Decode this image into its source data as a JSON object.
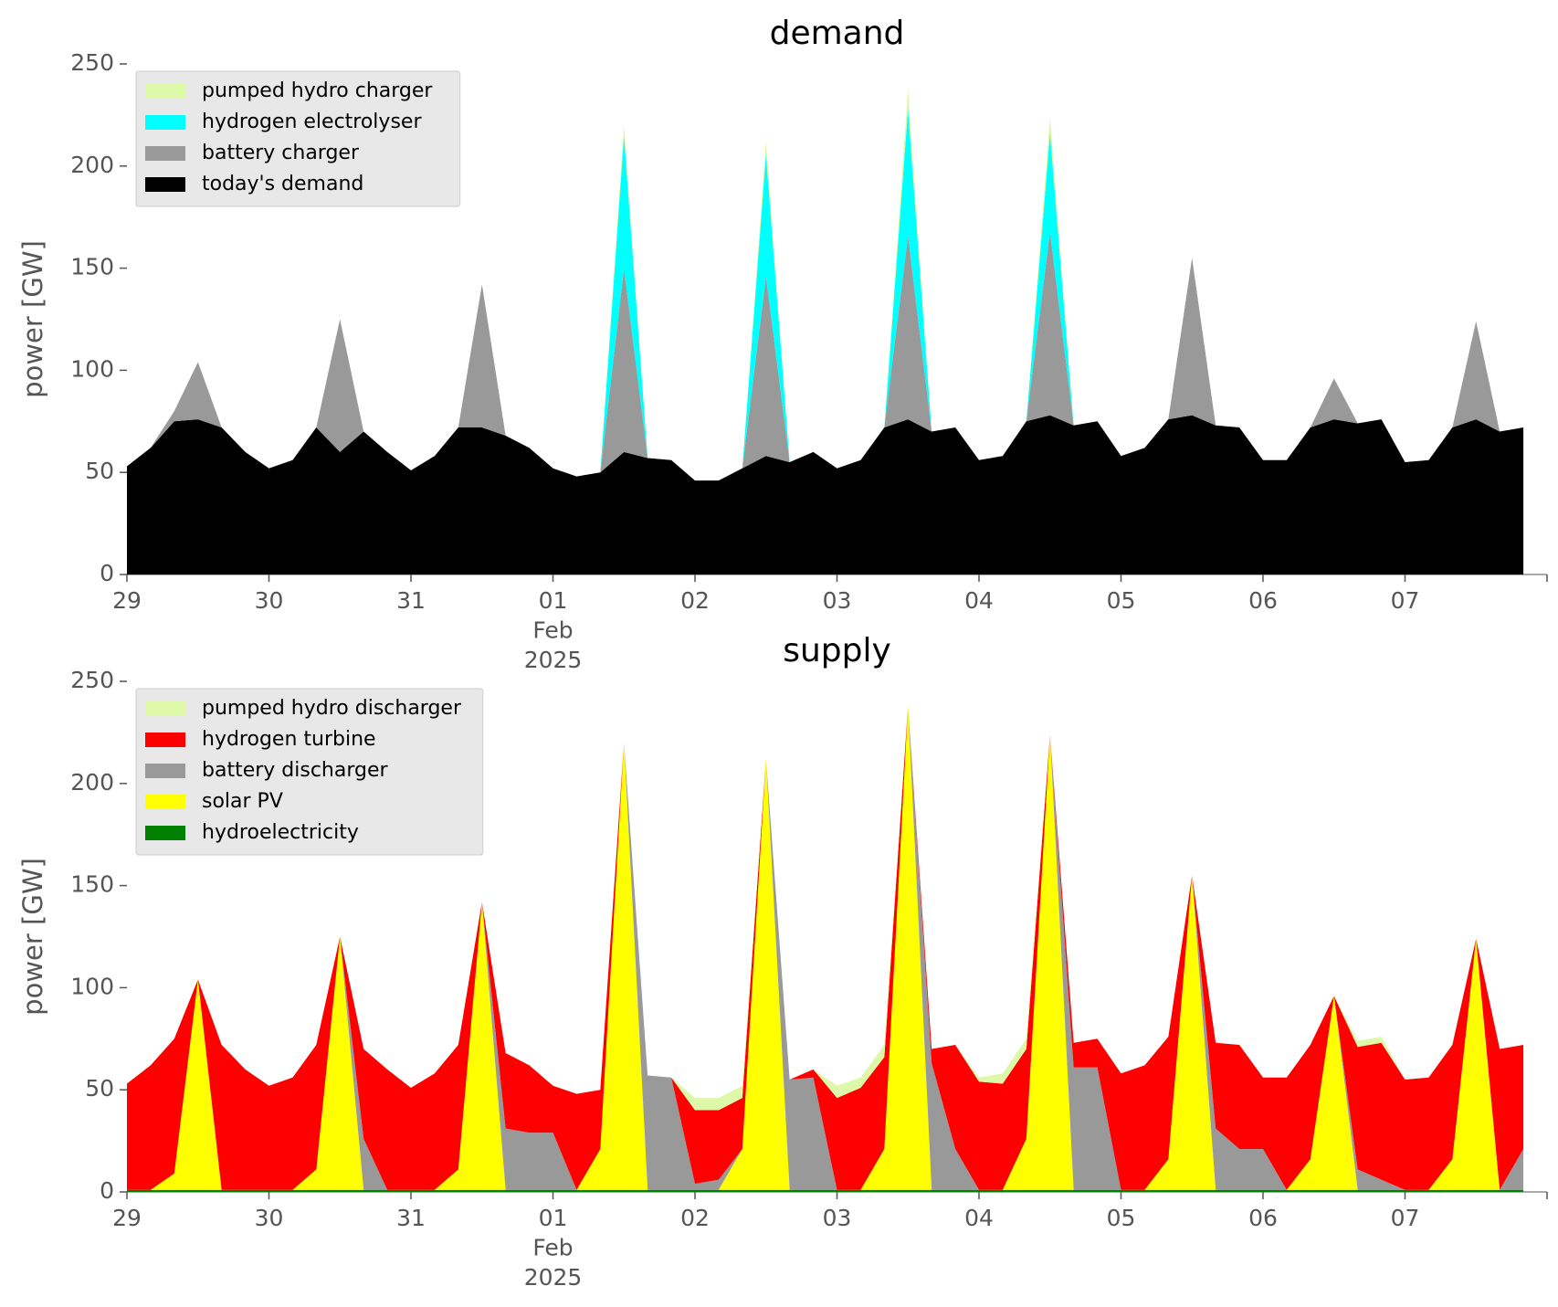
{
  "chart_data": [
    {
      "type": "area",
      "title": "demand",
      "y_label": "power [GW]",
      "legend": "upper left",
      "xlim": [
        "2025-01-29T00:00",
        "2025-02-08T00:00"
      ],
      "ylim": [
        0,
        250
      ],
      "yticks": [
        0,
        50,
        100,
        150,
        200,
        250
      ],
      "xticks": [
        {
          "value": "2025-01-29T00:00",
          "label": "29"
        },
        {
          "value": "2025-01-30T00:00",
          "label": "30"
        },
        {
          "value": "2025-01-31T00:00",
          "label": "31"
        },
        {
          "value": "2025-02-01T00:00",
          "label": "01\nFeb\n2025"
        },
        {
          "value": "2025-02-02T00:00",
          "label": "02"
        },
        {
          "value": "2025-02-03T00:00",
          "label": "03"
        },
        {
          "value": "2025-02-04T00:00",
          "label": "04"
        },
        {
          "value": "2025-02-05T00:00",
          "label": "05"
        },
        {
          "value": "2025-02-06T00:00",
          "label": "06"
        },
        {
          "value": "2025-02-07T00:00",
          "label": "07"
        },
        {
          "value": "2025-02-08T00:00",
          "label": ""
        }
      ],
      "x": [
        "2025-01-29T00:00",
        "2025-01-29T04:00",
        "2025-01-29T08:00",
        "2025-01-29T12:00",
        "2025-01-29T16:00",
        "2025-01-29T20:00",
        "2025-01-30T00:00",
        "2025-01-30T04:00",
        "2025-01-30T08:00",
        "2025-01-30T12:00",
        "2025-01-30T16:00",
        "2025-01-30T20:00",
        "2025-01-31T00:00",
        "2025-01-31T04:00",
        "2025-01-31T08:00",
        "2025-01-31T12:00",
        "2025-01-31T16:00",
        "2025-01-31T20:00",
        "2025-02-01T00:00",
        "2025-02-01T04:00",
        "2025-02-01T08:00",
        "2025-02-01T12:00",
        "2025-02-01T16:00",
        "2025-02-01T20:00",
        "2025-02-02T00:00",
        "2025-02-02T04:00",
        "2025-02-02T08:00",
        "2025-02-02T12:00",
        "2025-02-02T16:00",
        "2025-02-02T20:00",
        "2025-02-03T00:00",
        "2025-02-03T04:00",
        "2025-02-03T08:00",
        "2025-02-03T12:00",
        "2025-02-03T16:00",
        "2025-02-03T20:00",
        "2025-02-04T00:00",
        "2025-02-04T04:00",
        "2025-02-04T08:00",
        "2025-02-04T12:00",
        "2025-02-04T16:00",
        "2025-02-04T20:00",
        "2025-02-05T00:00",
        "2025-02-05T04:00",
        "2025-02-05T08:00",
        "2025-02-05T12:00",
        "2025-02-05T16:00",
        "2025-02-05T20:00",
        "2025-02-06T00:00",
        "2025-02-06T04:00",
        "2025-02-06T08:00",
        "2025-02-06T12:00",
        "2025-02-06T16:00",
        "2025-02-06T20:00",
        "2025-02-07T00:00",
        "2025-02-07T04:00",
        "2025-02-07T08:00",
        "2025-02-07T12:00",
        "2025-02-07T16:00",
        "2025-02-07T20:00"
      ],
      "series": [
        {
          "name": "pumped hydro charger",
          "color": "#dcf8a8",
          "values": [
            0,
            0,
            0,
            0,
            0,
            0,
            0,
            0,
            0,
            0,
            0,
            0,
            0,
            0,
            0,
            0,
            0,
            0,
            0,
            0,
            0,
            5,
            0,
            0,
            0,
            0,
            0,
            6,
            0,
            0,
            0,
            0,
            0,
            10,
            0,
            0,
            0,
            0,
            0,
            8,
            0,
            0,
            0,
            0,
            0,
            0,
            0,
            0,
            0,
            0,
            0,
            0,
            0,
            0,
            0,
            0,
            0,
            0,
            0,
            0
          ]
        },
        {
          "name": "hydrogen electrolyser",
          "color": "#00ffff",
          "values": [
            0,
            0,
            0,
            0,
            0,
            0,
            0,
            0,
            0,
            0,
            0,
            0,
            0,
            0,
            0,
            0,
            0,
            0,
            0,
            0,
            0,
            65,
            0,
            0,
            0,
            0,
            0,
            60,
            0,
            0,
            0,
            0,
            0,
            62,
            0,
            0,
            0,
            0,
            0,
            48,
            0,
            0,
            0,
            0,
            0,
            0,
            0,
            0,
            0,
            0,
            0,
            0,
            0,
            0,
            0,
            0,
            0,
            0,
            0,
            0
          ]
        },
        {
          "name": "battery charger",
          "color": "#999999",
          "values": [
            0,
            0,
            5,
            28,
            0,
            0,
            0,
            0,
            0,
            65,
            0,
            0,
            0,
            0,
            0,
            70,
            0,
            0,
            0,
            0,
            0,
            90,
            0,
            0,
            0,
            0,
            0,
            88,
            0,
            0,
            0,
            0,
            0,
            90,
            0,
            0,
            0,
            0,
            0,
            90,
            0,
            0,
            0,
            0,
            0,
            77,
            0,
            0,
            0,
            0,
            0,
            20,
            0,
            0,
            0,
            0,
            0,
            48,
            0,
            0
          ]
        },
        {
          "name": "today's demand",
          "color": "#000000",
          "values": [
            53,
            62,
            75,
            76,
            72,
            60,
            52,
            56,
            72,
            60,
            70,
            60,
            51,
            58,
            72,
            72,
            68,
            62,
            52,
            48,
            50,
            60,
            57,
            56,
            46,
            46,
            52,
            58,
            55,
            60,
            52,
            56,
            72,
            76,
            70,
            72,
            56,
            58,
            75,
            78,
            73,
            75,
            58,
            62,
            76,
            78,
            73,
            72,
            56,
            56,
            72,
            76,
            74,
            76,
            55,
            56,
            72,
            76,
            70,
            72
          ]
        }
      ]
    },
    {
      "type": "area",
      "title": "supply",
      "y_label": "power [GW]",
      "legend": "upper left",
      "xlim": [
        "2025-01-29T00:00",
        "2025-02-08T00:00"
      ],
      "ylim": [
        0,
        250
      ],
      "yticks": [
        0,
        50,
        100,
        150,
        200,
        250
      ],
      "xticks": [
        {
          "value": "2025-01-29T00:00",
          "label": "29"
        },
        {
          "value": "2025-01-30T00:00",
          "label": "30"
        },
        {
          "value": "2025-01-31T00:00",
          "label": "31"
        },
        {
          "value": "2025-02-01T00:00",
          "label": "01\nFeb\n2025"
        },
        {
          "value": "2025-02-02T00:00",
          "label": "02"
        },
        {
          "value": "2025-02-03T00:00",
          "label": "03"
        },
        {
          "value": "2025-02-04T00:00",
          "label": "04"
        },
        {
          "value": "2025-02-05T00:00",
          "label": "05"
        },
        {
          "value": "2025-02-06T00:00",
          "label": "06"
        },
        {
          "value": "2025-02-07T00:00",
          "label": "07"
        },
        {
          "value": "2025-02-08T00:00",
          "label": ""
        }
      ],
      "x": [
        "2025-01-29T00:00",
        "2025-01-29T04:00",
        "2025-01-29T08:00",
        "2025-01-29T12:00",
        "2025-01-29T16:00",
        "2025-01-29T20:00",
        "2025-01-30T00:00",
        "2025-01-30T04:00",
        "2025-01-30T08:00",
        "2025-01-30T12:00",
        "2025-01-30T16:00",
        "2025-01-30T20:00",
        "2025-01-31T00:00",
        "2025-01-31T04:00",
        "2025-01-31T08:00",
        "2025-01-31T12:00",
        "2025-01-31T16:00",
        "2025-01-31T20:00",
        "2025-02-01T00:00",
        "2025-02-01T04:00",
        "2025-02-01T08:00",
        "2025-02-01T12:00",
        "2025-02-01T16:00",
        "2025-02-01T20:00",
        "2025-02-02T00:00",
        "2025-02-02T04:00",
        "2025-02-02T08:00",
        "2025-02-02T12:00",
        "2025-02-02T16:00",
        "2025-02-02T20:00",
        "2025-02-03T00:00",
        "2025-02-03T04:00",
        "2025-02-03T08:00",
        "2025-02-03T12:00",
        "2025-02-03T16:00",
        "2025-02-03T20:00",
        "2025-02-04T00:00",
        "2025-02-04T04:00",
        "2025-02-04T08:00",
        "2025-02-04T12:00",
        "2025-02-04T16:00",
        "2025-02-04T20:00",
        "2025-02-05T00:00",
        "2025-02-05T04:00",
        "2025-02-05T08:00",
        "2025-02-05T12:00",
        "2025-02-05T16:00",
        "2025-02-05T20:00",
        "2025-02-06T00:00",
        "2025-02-06T04:00",
        "2025-02-06T08:00",
        "2025-02-06T12:00",
        "2025-02-06T16:00",
        "2025-02-06T20:00",
        "2025-02-07T00:00",
        "2025-02-07T04:00",
        "2025-02-07T08:00",
        "2025-02-07T12:00",
        "2025-02-07T16:00",
        "2025-02-07T20:00"
      ],
      "series": [
        {
          "name": "pumped hydro discharger",
          "color": "#dcf8a8",
          "values": [
            0,
            0,
            0,
            0,
            0,
            0,
            0,
            0,
            0,
            0,
            0,
            0,
            0,
            0,
            0,
            0,
            0,
            0,
            0,
            0,
            0,
            0,
            0,
            0,
            6,
            6,
            6,
            0,
            0,
            0,
            6,
            5,
            6,
            0,
            0,
            0,
            2,
            5,
            5,
            0,
            0,
            0,
            0,
            0,
            0,
            0,
            0,
            0,
            0,
            0,
            0,
            0,
            3,
            3,
            0,
            0,
            0,
            0,
            0,
            0
          ]
        },
        {
          "name": "hydrogen turbine",
          "color": "#ff0000",
          "values": [
            52,
            61,
            66,
            0,
            71,
            59,
            51,
            55,
            61,
            0,
            44,
            59,
            50,
            57,
            61,
            0,
            37,
            33,
            23,
            47,
            29,
            0,
            0,
            0,
            36,
            34,
            25,
            0,
            0,
            4,
            45,
            50,
            45,
            0,
            7,
            51,
            53,
            52,
            44,
            0,
            12,
            14,
            57,
            61,
            60,
            0,
            42,
            51,
            35,
            55,
            56,
            0,
            60,
            67,
            54,
            55,
            56,
            0,
            69,
            51
          ]
        },
        {
          "name": "battery discharger",
          "color": "#999999",
          "values": [
            0,
            0,
            0,
            0,
            0,
            0,
            0,
            0,
            0,
            0,
            25,
            0,
            0,
            0,
            0,
            0,
            30,
            28,
            28,
            0,
            0,
            0,
            56,
            55,
            3,
            5,
            0,
            0,
            54,
            55,
            0,
            0,
            0,
            0,
            62,
            20,
            0,
            0,
            0,
            0,
            60,
            60,
            0,
            0,
            0,
            0,
            30,
            20,
            20,
            0,
            0,
            0,
            10,
            5,
            0,
            0,
            0,
            0,
            0,
            20
          ]
        },
        {
          "name": "solar PV",
          "color": "#ffff00",
          "values": [
            0,
            0,
            8,
            103,
            0,
            0,
            0,
            0,
            10,
            124,
            0,
            0,
            0,
            0,
            10,
            141,
            0,
            0,
            0,
            0,
            20,
            219,
            0,
            0,
            0,
            0,
            20,
            211,
            0,
            0,
            0,
            0,
            20,
            237,
            0,
            0,
            0,
            0,
            25,
            223,
            0,
            0,
            0,
            0,
            15,
            154,
            0,
            0,
            0,
            0,
            15,
            95,
            0,
            0,
            0,
            0,
            15,
            123,
            0,
            0
          ]
        },
        {
          "name": "hydroelectricity",
          "color": "#008000",
          "values": [
            1,
            1,
            1,
            1,
            1,
            1,
            1,
            1,
            1,
            1,
            1,
            1,
            1,
            1,
            1,
            1,
            1,
            1,
            1,
            1,
            1,
            1,
            1,
            1,
            1,
            1,
            1,
            1,
            1,
            1,
            1,
            1,
            1,
            1,
            1,
            1,
            1,
            1,
            1,
            1,
            1,
            1,
            1,
            1,
            1,
            1,
            1,
            1,
            1,
            1,
            1,
            1,
            1,
            1,
            1,
            1,
            1,
            1,
            1,
            1
          ]
        }
      ]
    }
  ]
}
